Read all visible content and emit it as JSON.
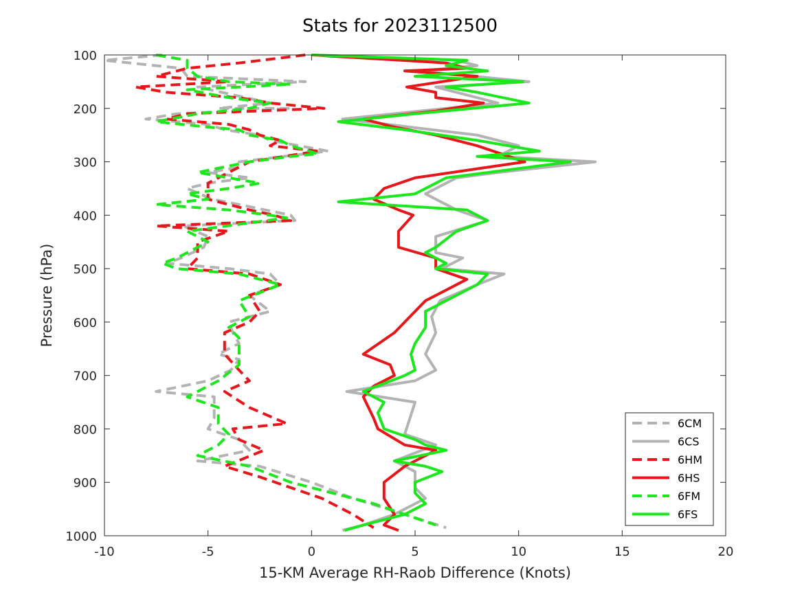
{
  "chart_data": {
    "type": "line",
    "title": "Stats for 2023112500",
    "xlabel": "15-KM Average RH-Raob Difference (Knots)",
    "ylabel": "Pressure (hPa)",
    "xlim": [
      -10,
      20
    ],
    "ylim": [
      100,
      1000
    ],
    "y_reversed": true,
    "xticks": [
      -10,
      -5,
      0,
      5,
      10,
      15,
      20
    ],
    "yticks": [
      100,
      200,
      300,
      400,
      500,
      600,
      700,
      800,
      900,
      1000
    ],
    "grid": false,
    "legend_position": "bottom-right",
    "series": [
      {
        "name": "6CM",
        "color": "#b3b3b3",
        "dash": true,
        "points": [
          [
            -7.2,
            100
          ],
          [
            -10,
            110
          ],
          [
            -6.3,
            125
          ],
          [
            -6,
            140
          ],
          [
            -0.3,
            150
          ],
          [
            -5.5,
            160
          ],
          [
            -2,
            190
          ],
          [
            -4.5,
            200
          ],
          [
            -1,
            200
          ],
          [
            -6.5,
            210
          ],
          [
            -8,
            220
          ],
          [
            -5,
            230
          ],
          [
            -4.2,
            240
          ],
          [
            -2.5,
            250
          ],
          [
            -2,
            260
          ],
          [
            -0.6,
            270
          ],
          [
            0.8,
            280
          ],
          [
            -3.5,
            300
          ],
          [
            -3.5,
            310
          ],
          [
            -5,
            320
          ],
          [
            -3,
            330
          ],
          [
            -5,
            340
          ],
          [
            -6,
            350
          ],
          [
            -4.8,
            370
          ],
          [
            -3.5,
            380
          ],
          [
            -1,
            400
          ],
          [
            -0.8,
            410
          ],
          [
            -6.2,
            420
          ],
          [
            -5,
            440
          ],
          [
            -5.2,
            460
          ],
          [
            -6.3,
            480
          ],
          [
            -7,
            490
          ],
          [
            -4,
            500
          ],
          [
            -2,
            510
          ],
          [
            -1.5,
            530
          ],
          [
            -3,
            550
          ],
          [
            -2,
            580
          ],
          [
            -4,
            600
          ],
          [
            -3.8,
            620
          ],
          [
            -3.5,
            640
          ],
          [
            -4.5,
            660
          ],
          [
            -3.5,
            670
          ],
          [
            -3.9,
            690
          ],
          [
            -5,
            710
          ],
          [
            -7.5,
            730
          ],
          [
            -4.7,
            740
          ],
          [
            -4.7,
            780
          ],
          [
            -5,
            800
          ],
          [
            -3.5,
            820
          ],
          [
            -3,
            840
          ],
          [
            -5.5,
            860
          ],
          [
            -2.5,
            870
          ],
          [
            0,
            900
          ],
          [
            2,
            930
          ],
          [
            4.5,
            960
          ],
          [
            6.5,
            985
          ]
        ]
      },
      {
        "name": "6CS",
        "color": "#b3b3b3",
        "dash": false,
        "points": [
          [
            0,
            100
          ],
          [
            7,
            110
          ],
          [
            8,
            120
          ],
          [
            5.2,
            130
          ],
          [
            10.5,
            150
          ],
          [
            6,
            160
          ],
          [
            8,
            180
          ],
          [
            9,
            190
          ],
          [
            1.5,
            220
          ],
          [
            8,
            250
          ],
          [
            10,
            270
          ],
          [
            9,
            290
          ],
          [
            13.7,
            300
          ],
          [
            9,
            320
          ],
          [
            7,
            330
          ],
          [
            5.5,
            360
          ],
          [
            6.5,
            380
          ],
          [
            7,
            390
          ],
          [
            8.5,
            410
          ],
          [
            6,
            440
          ],
          [
            6,
            470
          ],
          [
            7.3,
            480
          ],
          [
            6.3,
            500
          ],
          [
            9.3,
            510
          ],
          [
            8,
            530
          ],
          [
            6.2,
            560
          ],
          [
            5.8,
            590
          ],
          [
            6,
            620
          ],
          [
            5.5,
            660
          ],
          [
            6,
            690
          ],
          [
            5,
            710
          ],
          [
            1.7,
            730
          ],
          [
            5,
            750
          ],
          [
            4.5,
            810
          ],
          [
            6,
            830
          ],
          [
            4,
            860
          ],
          [
            5,
            880
          ],
          [
            5,
            910
          ],
          [
            5.5,
            930
          ],
          [
            4,
            960
          ],
          [
            2.5,
            980
          ],
          [
            1.5,
            990
          ]
        ]
      },
      {
        "name": "6HM",
        "color": "#e6161b",
        "dash": true,
        "points": [
          [
            -0.3,
            100
          ],
          [
            -3.5,
            115
          ],
          [
            -6,
            125
          ],
          [
            -7.5,
            140
          ],
          [
            -4,
            150
          ],
          [
            -8.5,
            160
          ],
          [
            -7,
            170
          ],
          [
            -3.5,
            180
          ],
          [
            -2,
            190
          ],
          [
            0.6,
            200
          ],
          [
            -6,
            210
          ],
          [
            -7,
            220
          ],
          [
            -4,
            230
          ],
          [
            -3,
            240
          ],
          [
            -2.5,
            250
          ],
          [
            -1.5,
            260
          ],
          [
            -2,
            270
          ],
          [
            0.3,
            280
          ],
          [
            -3,
            300
          ],
          [
            -3.5,
            310
          ],
          [
            -4,
            320
          ],
          [
            -5,
            340
          ],
          [
            -5,
            370
          ],
          [
            -3,
            390
          ],
          [
            -1.8,
            400
          ],
          [
            -1,
            410
          ],
          [
            -7.5,
            420
          ],
          [
            -4,
            430
          ],
          [
            -5.5,
            450
          ],
          [
            -5.5,
            480
          ],
          [
            -6,
            500
          ],
          [
            -3,
            510
          ],
          [
            -1.5,
            530
          ],
          [
            -3,
            550
          ],
          [
            -2.5,
            580
          ],
          [
            -3,
            600
          ],
          [
            -4.2,
            620
          ],
          [
            -4.2,
            660
          ],
          [
            -3.5,
            690
          ],
          [
            -3,
            710
          ],
          [
            -4.2,
            730
          ],
          [
            -3,
            760
          ],
          [
            -1.2,
            790
          ],
          [
            -3.8,
            800
          ],
          [
            -3.5,
            820
          ],
          [
            -2.3,
            840
          ],
          [
            -4.2,
            870
          ],
          [
            -2.5,
            890
          ],
          [
            -1,
            910
          ],
          [
            0.5,
            930
          ],
          [
            2,
            960
          ],
          [
            3,
            985
          ]
        ]
      },
      {
        "name": "6HS",
        "color": "#e6161b",
        "dash": false,
        "points": [
          [
            0,
            100
          ],
          [
            6.5,
            115
          ],
          [
            7.5,
            125
          ],
          [
            4.5,
            130
          ],
          [
            8,
            140
          ],
          [
            4.6,
            160
          ],
          [
            6,
            170
          ],
          [
            6,
            180
          ],
          [
            8.3,
            190
          ],
          [
            6,
            205
          ],
          [
            2.5,
            220
          ],
          [
            4,
            235
          ],
          [
            6,
            250
          ],
          [
            8,
            270
          ],
          [
            10.3,
            300
          ],
          [
            5,
            330
          ],
          [
            3.5,
            350
          ],
          [
            3,
            370
          ],
          [
            4.2,
            390
          ],
          [
            4.9,
            400
          ],
          [
            4.2,
            430
          ],
          [
            4.2,
            460
          ],
          [
            6,
            480
          ],
          [
            6,
            500
          ],
          [
            7.5,
            520
          ],
          [
            5.5,
            560
          ],
          [
            4.5,
            600
          ],
          [
            4,
            620
          ],
          [
            2.5,
            660
          ],
          [
            3.8,
            680
          ],
          [
            4,
            700
          ],
          [
            3,
            720
          ],
          [
            2.5,
            740
          ],
          [
            3,
            780
          ],
          [
            3.2,
            800
          ],
          [
            4.5,
            830
          ],
          [
            6,
            840
          ],
          [
            4.5,
            870
          ],
          [
            3.5,
            900
          ],
          [
            3.5,
            930
          ],
          [
            4,
            960
          ],
          [
            3.5,
            980
          ],
          [
            4.2,
            990
          ]
        ]
      },
      {
        "name": "6FM",
        "color": "#1ce61c",
        "dash": true,
        "points": [
          [
            -7.5,
            100
          ],
          [
            -6,
            110
          ],
          [
            -6,
            125
          ],
          [
            -5.5,
            140
          ],
          [
            -4,
            150
          ],
          [
            -1,
            155
          ],
          [
            -6,
            165
          ],
          [
            -4,
            180
          ],
          [
            -2,
            190
          ],
          [
            -3,
            200
          ],
          [
            -5.5,
            210
          ],
          [
            -7.5,
            225
          ],
          [
            -5,
            235
          ],
          [
            -3.5,
            240
          ],
          [
            -3,
            250
          ],
          [
            -1.5,
            260
          ],
          [
            -1,
            270
          ],
          [
            0.3,
            285
          ],
          [
            -1,
            290
          ],
          [
            -3,
            300
          ],
          [
            -5.5,
            320
          ],
          [
            -2.5,
            340
          ],
          [
            -4,
            350
          ],
          [
            -6,
            360
          ],
          [
            -5,
            370
          ],
          [
            -7.5,
            380
          ],
          [
            -4,
            390
          ],
          [
            -2,
            400
          ],
          [
            -1.2,
            405
          ],
          [
            -6,
            430
          ],
          [
            -5,
            450
          ],
          [
            -6.5,
            480
          ],
          [
            -7.2,
            490
          ],
          [
            -6.5,
            500
          ],
          [
            -3.5,
            510
          ],
          [
            -1.5,
            530
          ],
          [
            -3.5,
            560
          ],
          [
            -3,
            590
          ],
          [
            -4,
            610
          ],
          [
            -3.5,
            630
          ],
          [
            -3.5,
            650
          ],
          [
            -3.5,
            680
          ],
          [
            -4.5,
            710
          ],
          [
            -6,
            740
          ],
          [
            -4.5,
            760
          ],
          [
            -4.5,
            790
          ],
          [
            -4,
            810
          ],
          [
            -4.5,
            830
          ],
          [
            -5.5,
            850
          ],
          [
            -3,
            870
          ],
          [
            -1,
            900
          ],
          [
            1,
            920
          ],
          [
            3,
            940
          ],
          [
            6,
            980
          ]
        ]
      },
      {
        "name": "6FS",
        "color": "#1ce61c",
        "dash": false,
        "points": [
          [
            0,
            100
          ],
          [
            7.5,
            110
          ],
          [
            6.5,
            120
          ],
          [
            8.5,
            130
          ],
          [
            5,
            140
          ],
          [
            10.2,
            150
          ],
          [
            6.5,
            160
          ],
          [
            8,
            170
          ],
          [
            10.5,
            190
          ],
          [
            5,
            210
          ],
          [
            1.3,
            225
          ],
          [
            4.5,
            240
          ],
          [
            8,
            260
          ],
          [
            11,
            280
          ],
          [
            8,
            290
          ],
          [
            12.5,
            300
          ],
          [
            6.5,
            330
          ],
          [
            5,
            360
          ],
          [
            1.3,
            375
          ],
          [
            7.5,
            390
          ],
          [
            8.5,
            410
          ],
          [
            7,
            430
          ],
          [
            6,
            460
          ],
          [
            5.5,
            470
          ],
          [
            6.5,
            490
          ],
          [
            6,
            500
          ],
          [
            8.5,
            510
          ],
          [
            8,
            530
          ],
          [
            7,
            550
          ],
          [
            5.5,
            580
          ],
          [
            5.5,
            610
          ],
          [
            5,
            640
          ],
          [
            4.8,
            660
          ],
          [
            5,
            690
          ],
          [
            4.5,
            700
          ],
          [
            2.5,
            730
          ],
          [
            3.5,
            750
          ],
          [
            3.2,
            770
          ],
          [
            3.5,
            800
          ],
          [
            5,
            820
          ],
          [
            5.5,
            830
          ],
          [
            6.5,
            840
          ],
          [
            4,
            860
          ],
          [
            5.5,
            870
          ],
          [
            6.3,
            880
          ],
          [
            5,
            900
          ],
          [
            5,
            920
          ],
          [
            5.5,
            940
          ],
          [
            4.5,
            960
          ],
          [
            2.5,
            980
          ],
          [
            1.6,
            990
          ]
        ]
      }
    ]
  }
}
